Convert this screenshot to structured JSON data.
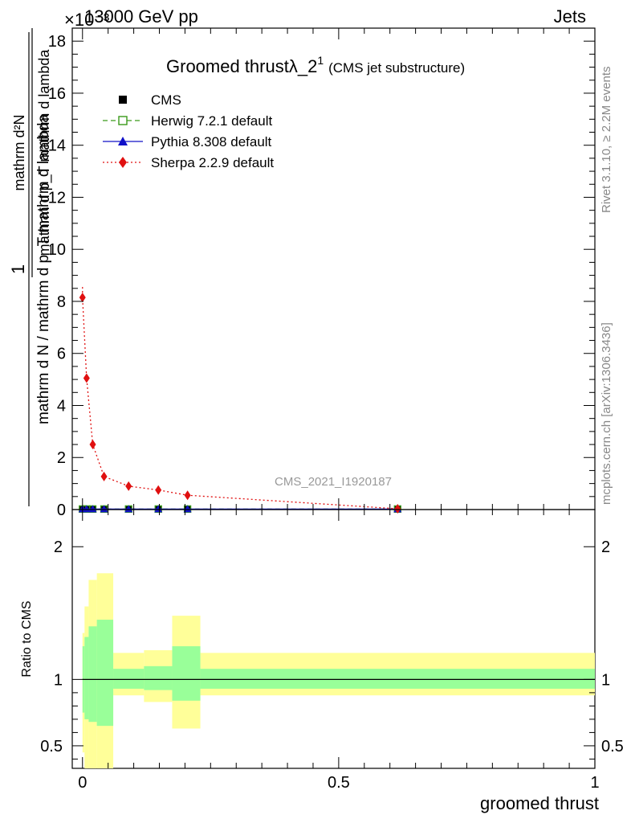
{
  "header": {
    "left": "13000 GeV pp",
    "right": "Jets",
    "scale_exponent": "×10⁻³"
  },
  "side_text": {
    "rivet": "Rivet 3.1.10, ≥ 2.2M events",
    "mcplots": "mcplots.cern.ch [arXiv:1306.3436]"
  },
  "watermark": "CMS_2021_I1920187",
  "chart_data": [
    {
      "type": "line",
      "title": "Groomed thrustλ_2",
      "title_superscript": "1",
      "subtitle": "(CMS jet substructure)",
      "ylabel_top": "1",
      "ylabel_bottom": "mathrm d N / mathrm d p_T mathrm d lambda",
      "ylabel_num": "mathrm d²N",
      "ylabel_den": "mathrm d p_T mathrm d lambda",
      "xlim": [
        -0.02,
        1.0
      ],
      "ylim": [
        0,
        18.5
      ],
      "y_scale": "×10⁻³",
      "yticks": [
        0,
        2,
        4,
        6,
        8,
        10,
        12,
        14,
        16,
        18
      ],
      "ytick_labels": [
        "0",
        "2",
        "4",
        "6",
        "8",
        "10",
        "12",
        "14",
        "16",
        "18"
      ],
      "legend_position": "top-left",
      "series": [
        {
          "name": "CMS",
          "color": "#000000",
          "marker": "square",
          "x": [
            0.0,
            0.008,
            0.02,
            0.042,
            0.09,
            0.148,
            0.205,
            0.615
          ],
          "y": [
            0.02,
            0.02,
            0.02,
            0.02,
            0.02,
            0.02,
            0.02,
            0.02
          ]
        },
        {
          "name": "Herwig 7.2.1 default",
          "color": "#3a9a1a",
          "marker": "open-square",
          "line": "dashed",
          "x": [
            0.0,
            0.008,
            0.02,
            0.042,
            0.09,
            0.148,
            0.205,
            0.615
          ],
          "y": [
            0.02,
            0.02,
            0.02,
            0.02,
            0.02,
            0.02,
            0.02,
            0.02
          ]
        },
        {
          "name": "Pythia 8.308 default",
          "color": "#1010c8",
          "marker": "triangle",
          "line": "solid",
          "x": [
            0.0,
            0.008,
            0.02,
            0.042,
            0.09,
            0.148,
            0.205,
            0.615
          ],
          "y": [
            0.02,
            0.02,
            0.02,
            0.02,
            0.02,
            0.02,
            0.02,
            0.02
          ]
        },
        {
          "name": "Sherpa 2.2.9 default",
          "color": "#e01010",
          "marker": "diamond",
          "line": "dotted",
          "x": [
            0.0,
            0.008,
            0.02,
            0.042,
            0.09,
            0.148,
            0.205,
            0.615
          ],
          "y": [
            8.15,
            5.05,
            2.5,
            1.27,
            0.9,
            0.75,
            0.55,
            0.03
          ]
        }
      ]
    },
    {
      "type": "area",
      "ylabel": "Ratio to CMS",
      "xlabel": "groomed thrust",
      "xlim": [
        -0.02,
        1.0
      ],
      "ylim": [
        0.33,
        2.28
      ],
      "yticks": [
        0.5,
        1,
        2
      ],
      "ytick_labels": [
        "0.5",
        "1",
        "2"
      ],
      "xticks": [
        0,
        0.5,
        1
      ],
      "xtick_labels": [
        "0",
        "0.5",
        "1"
      ],
      "reference": 1,
      "bins": [
        {
          "x0": 0.0,
          "x1": 0.004,
          "inner": [
            0.75,
            1.25
          ],
          "outer": [
            0.45,
            1.35
          ]
        },
        {
          "x0": 0.004,
          "x1": 0.012,
          "inner": [
            0.7,
            1.32
          ],
          "outer": [
            0.3,
            1.55
          ]
        },
        {
          "x0": 0.012,
          "x1": 0.028,
          "inner": [
            0.68,
            1.4
          ],
          "outer": [
            0.1,
            1.75
          ]
        },
        {
          "x0": 0.028,
          "x1": 0.06,
          "inner": [
            0.65,
            1.45
          ],
          "outer": [
            0.1,
            1.8
          ]
        },
        {
          "x0": 0.06,
          "x1": 0.12,
          "inner": [
            0.93,
            1.08
          ],
          "outer": [
            0.88,
            1.2
          ]
        },
        {
          "x0": 0.12,
          "x1": 0.175,
          "inner": [
            0.92,
            1.1
          ],
          "outer": [
            0.83,
            1.22
          ]
        },
        {
          "x0": 0.175,
          "x1": 0.23,
          "inner": [
            0.84,
            1.25
          ],
          "outer": [
            0.63,
            1.48
          ]
        },
        {
          "x0": 0.23,
          "x1": 1.0,
          "inner": [
            0.93,
            1.08
          ],
          "outer": [
            0.88,
            1.2
          ]
        }
      ]
    }
  ]
}
